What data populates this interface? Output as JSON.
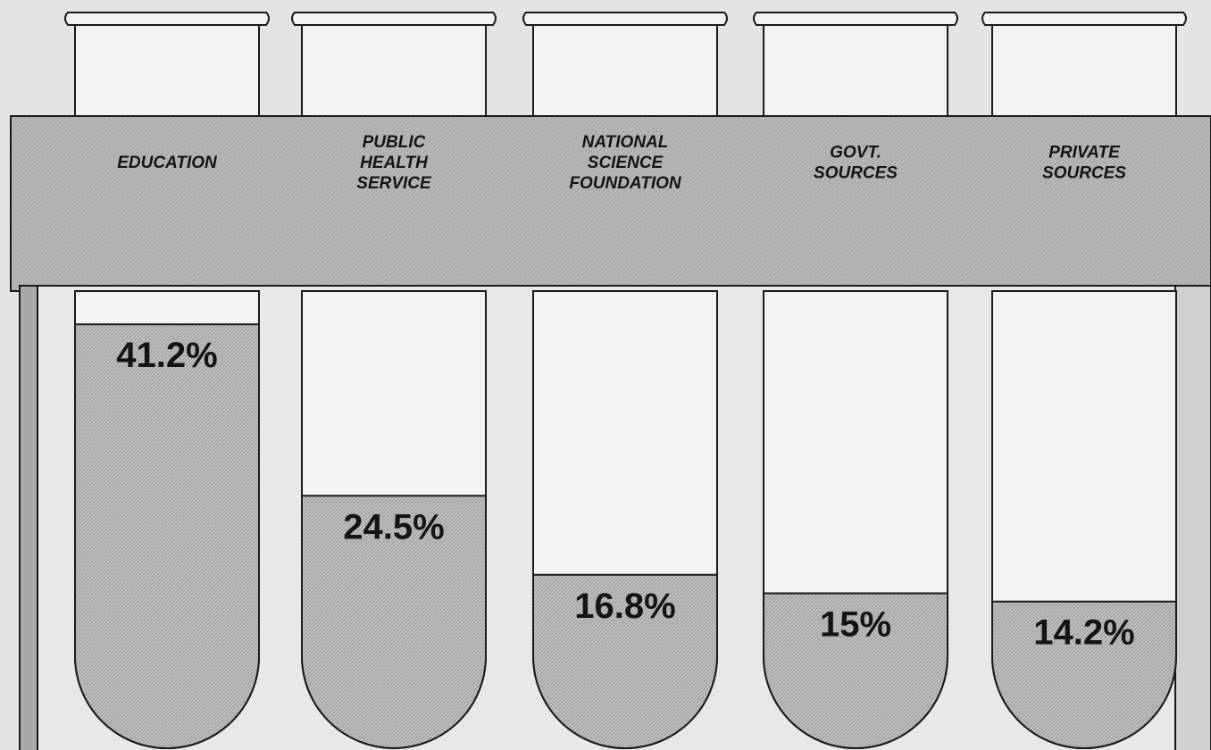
{
  "chart_data": {
    "type": "bar",
    "style": "test-tube pictograph",
    "categories": [
      "EDUCATION",
      "PUBLIC HEALTH SERVICE",
      "NATIONAL SCIENCE FOUNDATION",
      "GOVT. SOURCES",
      "PRIVATE SOURCES"
    ],
    "category_label_lines": [
      [
        "EDUCATION"
      ],
      [
        "PUBLIC",
        "HEALTH",
        "SERVICE"
      ],
      [
        "NATIONAL",
        "SCIENCE",
        "FOUNDATION"
      ],
      [
        "GOVT.",
        "SOURCES"
      ],
      [
        "PRIVATE",
        "SOURCES"
      ]
    ],
    "values": [
      41.2,
      24.5,
      16.8,
      15,
      14.2
    ],
    "value_labels": [
      "41.2%",
      "24.5%",
      "16.8%",
      "15%",
      "14.2%"
    ],
    "unit": "%",
    "ylim": [
      0,
      50
    ],
    "grid": false,
    "legend": "none"
  },
  "colors": {
    "background": "#e4e4e2",
    "band": "#b8b8b6",
    "rack": "#a9a9a7",
    "tube": "#f3f3f1",
    "liquid": "#bdbdbb",
    "outline": "#1a1a1a",
    "text": "#141414"
  }
}
